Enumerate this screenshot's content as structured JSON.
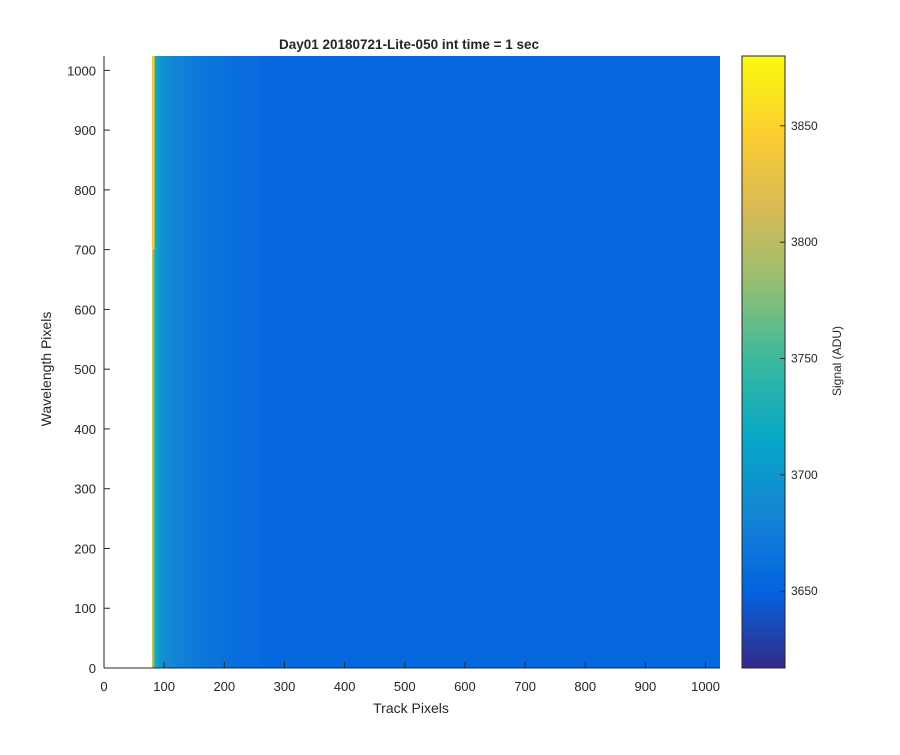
{
  "chart_data": {
    "type": "heatmap",
    "title": "Day01 20180721-Lite-050 int time = 1 sec",
    "xlabel": "Track Pixels",
    "ylabel": "Wavelength Pixels",
    "xlim": [
      0,
      1024
    ],
    "ylim": [
      0,
      1024
    ],
    "x_ticks": [
      0,
      100,
      200,
      300,
      400,
      500,
      600,
      700,
      800,
      900,
      1000
    ],
    "y_ticks": [
      0,
      100,
      200,
      300,
      400,
      500,
      600,
      700,
      800,
      900,
      1000
    ],
    "image_x_range": [
      80,
      1024
    ],
    "image_y_range": [
      0,
      1024
    ],
    "background_level": 3655,
    "left_edge_gradient": {
      "x": [
        80,
        85,
        95,
        110,
        130,
        160,
        200,
        260
      ],
      "signal": [
        3845,
        3725,
        3695,
        3685,
        3678,
        3670,
        3663,
        3657
      ]
    },
    "colorbar": {
      "label": "Signal (ADU)",
      "clim": [
        3617,
        3880
      ],
      "ticks": [
        3650,
        3700,
        3750,
        3800,
        3850
      ],
      "colormap": "parula",
      "colors": [
        "#352a87",
        "#0363e1",
        "#1485d4",
        "#06a7c6",
        "#38b99e",
        "#92bf73",
        "#d9ba56",
        "#fcce2e",
        "#f9fb0e"
      ]
    },
    "grid": false
  }
}
